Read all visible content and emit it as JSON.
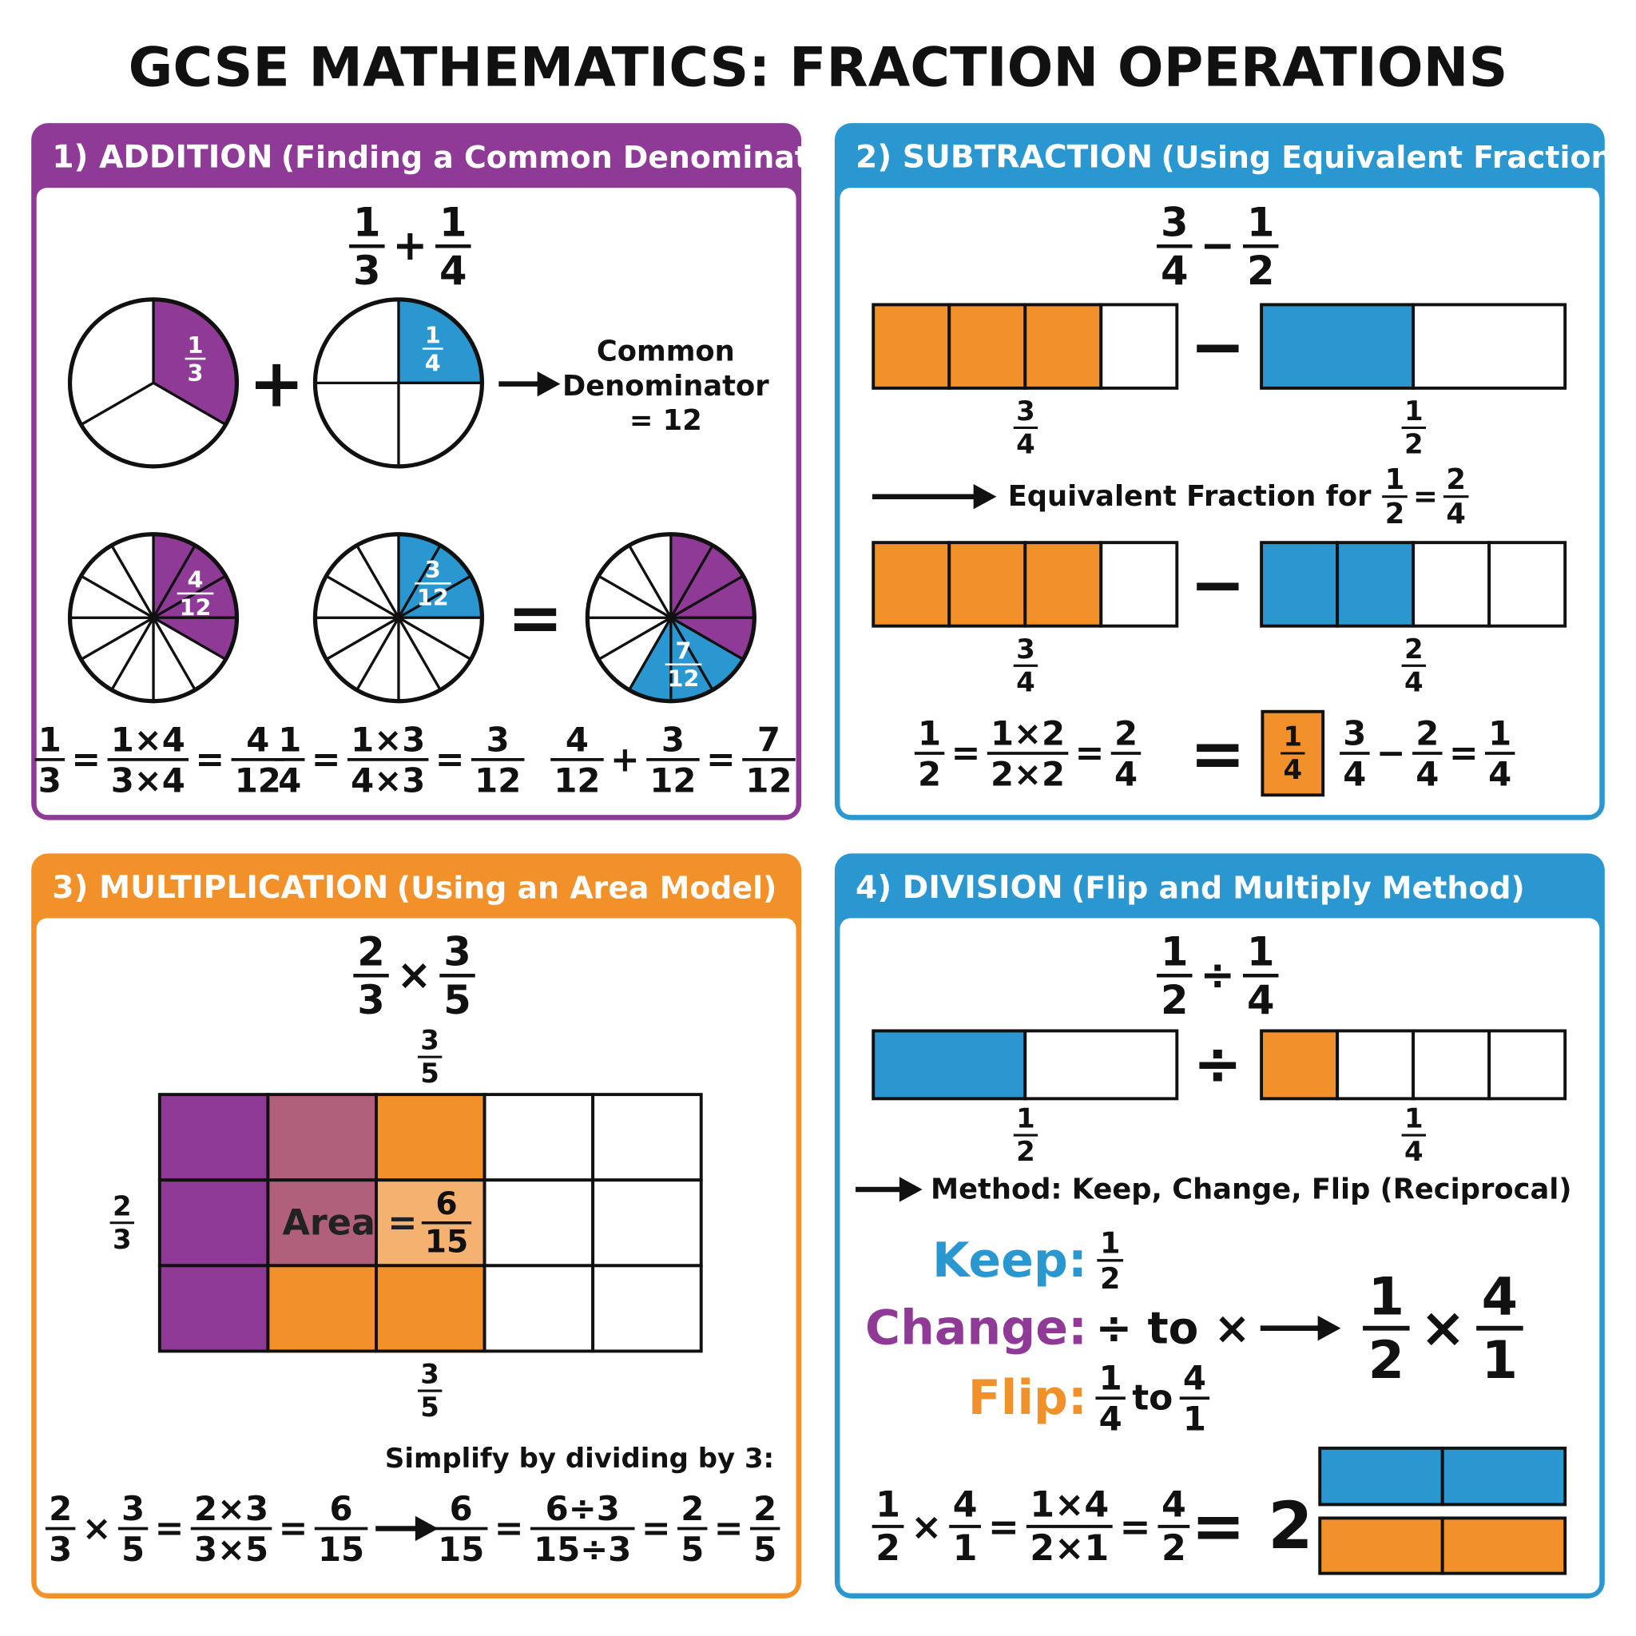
{
  "title": "GCSE MATHEMATICS: FRACTION OPERATIONS",
  "addition": {
    "heading": "1) ADDITION",
    "subheading": "(Finding a Common Denominator)",
    "problem": [
      {
        "n": "1",
        "d": "3"
      },
      "+",
      {
        "n": "1",
        "d": "4"
      }
    ],
    "pies": [
      {
        "n": "1",
        "d": "3"
      },
      {
        "n": "1",
        "d": "4"
      }
    ],
    "pies_operator": "+",
    "note": [
      "Common",
      "Denominator",
      "= 12"
    ],
    "equivalent_pies": [
      {
        "n": "4",
        "d": "12"
      },
      {
        "n": "3",
        "d": "12"
      }
    ],
    "equals": "=",
    "sum_pie": {
      "n": "7",
      "d": "12"
    },
    "steps": [
      [
        {
          "n": "1",
          "d": "3"
        },
        "=",
        {
          "n": "1×4",
          "d": "3×4"
        },
        "=",
        {
          "n": "4",
          "d": "12"
        }
      ],
      [
        {
          "n": "1",
          "d": "4"
        },
        "=",
        {
          "n": "1×3",
          "d": "4×3"
        },
        "=",
        {
          "n": "3",
          "d": "12"
        }
      ],
      [
        {
          "n": "4",
          "d": "12"
        },
        "+",
        {
          "n": "3",
          "d": "12"
        },
        "=",
        {
          "n": "7",
          "d": "12"
        }
      ]
    ]
  },
  "subtraction": {
    "heading": "2) SUBTRACTION",
    "subheading": "(Using Equivalent Fractions)",
    "problem": [
      {
        "n": "3",
        "d": "4"
      },
      "−",
      {
        "n": "1",
        "d": "2"
      }
    ],
    "bars": [
      {
        "left": {
          "n": "3",
          "d": "4"
        },
        "operator": "−",
        "right": {
          "n": "1",
          "d": "2"
        }
      },
      {
        "left": {
          "n": "3",
          "d": "4"
        },
        "operator": "−",
        "right": {
          "n": "2",
          "d": "4"
        }
      }
    ],
    "equivalent": {
      "text": "Equivalent Fraction for",
      "expression": [
        {
          "n": "1",
          "d": "2"
        },
        "=",
        {
          "n": "2",
          "d": "4"
        }
      ]
    },
    "working": [
      {
        "n": "1",
        "d": "2"
      },
      "=",
      {
        "n": "1×2",
        "d": "2×2"
      },
      "=",
      {
        "n": "2",
        "d": "4"
      }
    ],
    "equals": "=",
    "answer": {
      "n": "1",
      "d": "4"
    },
    "check": [
      {
        "n": "3",
        "d": "4"
      },
      "−",
      {
        "n": "2",
        "d": "4"
      },
      "=",
      {
        "n": "1",
        "d": "4"
      }
    ]
  },
  "multiplication": {
    "heading": "3) MULTIPLICATION",
    "subheading": "(Using an Area Model)",
    "problem": [
      {
        "n": "2",
        "d": "3"
      },
      "×",
      {
        "n": "3",
        "d": "5"
      }
    ],
    "top_label": {
      "n": "3",
      "d": "5"
    },
    "side_label": {
      "n": "2",
      "d": "3"
    },
    "bottom_label": {
      "n": "3",
      "d": "5"
    },
    "area_text": "Area =",
    "area": {
      "n": "6",
      "d": "15"
    },
    "simplify_note": "Simplify by dividing by 3:",
    "working": [
      {
        "n": "2",
        "d": "3"
      },
      "×",
      {
        "n": "3",
        "d": "5"
      },
      "=",
      {
        "n": "2×3",
        "d": "3×5"
      },
      "=",
      {
        "n": "6",
        "d": "15"
      }
    ],
    "simplify": [
      {
        "n": "6",
        "d": "15"
      },
      "=",
      {
        "n": "6÷3",
        "d": "15÷3"
      },
      "=",
      {
        "n": "2",
        "d": "5"
      },
      "=",
      {
        "n": "2",
        "d": "5"
      }
    ]
  },
  "division": {
    "heading": "4) DIVISION",
    "subheading": "(Flip and Multiply Method)",
    "problem": [
      {
        "n": "1",
        "d": "2"
      },
      "÷",
      {
        "n": "1",
        "d": "4"
      }
    ],
    "bars": {
      "left": {
        "n": "1",
        "d": "2"
      },
      "operator": "÷",
      "right": {
        "n": "1",
        "d": "4"
      }
    },
    "method": "Method: Keep, Change, Flip (Reciprocal)",
    "keep": {
      "label": "Keep:",
      "value": {
        "n": "1",
        "d": "2"
      }
    },
    "change": {
      "label": "Change:",
      "value": "÷ to ×"
    },
    "flip": {
      "label": "Flip:",
      "value": [
        {
          "n": "1",
          "d": "4"
        },
        "to",
        {
          "n": "4",
          "d": "1"
        }
      ]
    },
    "rewritten": [
      {
        "n": "1",
        "d": "2"
      },
      "×",
      {
        "n": "4",
        "d": "1"
      }
    ],
    "working": [
      {
        "n": "1",
        "d": "2"
      },
      "×",
      {
        "n": "4",
        "d": "1"
      },
      "=",
      {
        "n": "1×4",
        "d": "2×1"
      },
      "=",
      {
        "n": "4",
        "d": "2"
      }
    ],
    "result": "= 2"
  }
}
